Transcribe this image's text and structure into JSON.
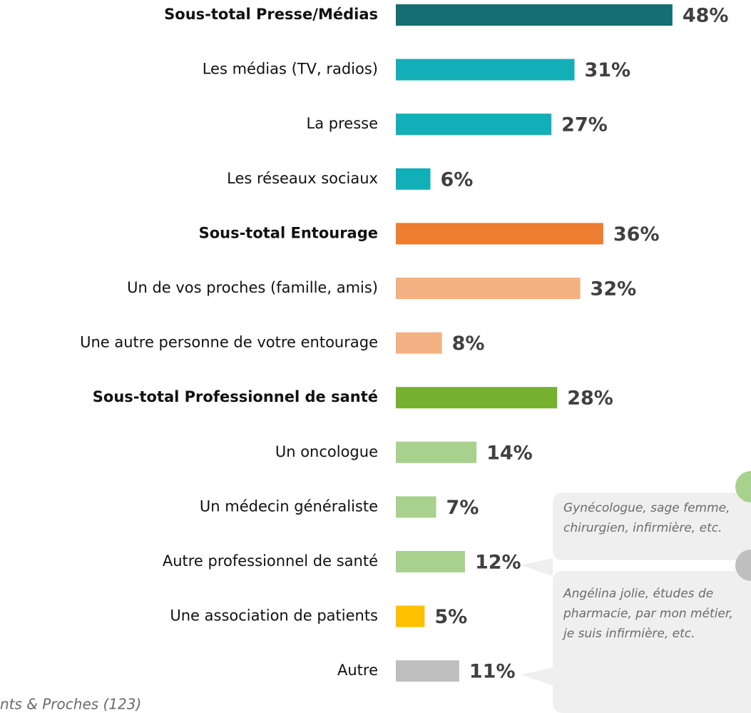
{
  "chart_data": {
    "type": "hbar",
    "categories": [
      "Sous-total Presse/Médias",
      "Les médias (TV, radios)",
      "La presse",
      "Les réseaux sociaux",
      "Sous-total Entourage",
      "Un de vos proches (famille, amis)",
      "Une autre personne de votre entourage",
      "Sous-total Professionnel de santé",
      "Un oncologue",
      "Un médecin généraliste",
      "Autre professionnel de santé",
      "Une association de patients",
      "Autre"
    ],
    "values": [
      48,
      31,
      27,
      6,
      36,
      32,
      8,
      28,
      14,
      7,
      12,
      5,
      11
    ],
    "value_labels": [
      "48%",
      "31%",
      "27%",
      "6%",
      "36%",
      "32%",
      "8%",
      "28%",
      "14%",
      "7%",
      "12%",
      "5%",
      "11%"
    ],
    "colors": [
      "#136f72",
      "#13afb8",
      "#13afb8",
      "#13afb8",
      "#ed7d31",
      "#f4b183",
      "#f4b183",
      "#76b12f",
      "#a9d18e",
      "#a9d18e",
      "#a9d18e",
      "#ffc000",
      "#bfbfbf"
    ],
    "bold": [
      true,
      false,
      false,
      false,
      true,
      false,
      false,
      true,
      false,
      false,
      false,
      false,
      false
    ],
    "annotations": [
      {
        "lines": [
          "Gynécologue, sage femme,",
          "chirurgien, infirmière, etc."
        ],
        "color": "#a9d18e"
      },
      {
        "lines": [
          "Angélina jolie, études de",
          "pharmacie, par mon métier,",
          "je suis infirmière, etc."
        ],
        "color": "#bfbfbf"
      }
    ],
    "footnote": "nts & Proches (123)"
  }
}
